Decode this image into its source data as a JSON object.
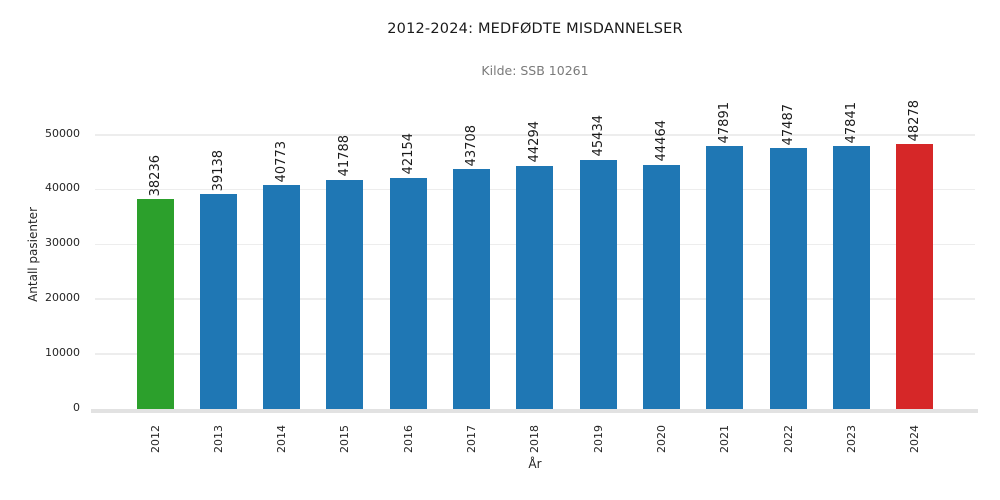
{
  "chart_data": {
    "type": "bar",
    "title": "2012-2024: MEDFØDTE MISDANNELSER",
    "subtitle": "Kilde: SSB 10261",
    "xlabel": "År",
    "ylabel": "Antall pasienter",
    "categories": [
      "2012",
      "2013",
      "2014",
      "2015",
      "2016",
      "2017",
      "2018",
      "2019",
      "2020",
      "2021",
      "2022",
      "2023",
      "2024"
    ],
    "values": [
      38236,
      39138,
      40773,
      41788,
      42154,
      43708,
      44294,
      45434,
      44464,
      47891,
      47487,
      47841,
      48278
    ],
    "bar_colors": [
      "#2ca02c",
      "#1f77b4",
      "#1f77b4",
      "#1f77b4",
      "#1f77b4",
      "#1f77b4",
      "#1f77b4",
      "#1f77b4",
      "#1f77b4",
      "#1f77b4",
      "#1f77b4",
      "#1f77b4",
      "#d62728"
    ],
    "value_labels_shown": true,
    "yticks": [
      0,
      10000,
      20000,
      30000,
      40000,
      50000
    ],
    "ylim": [
      0,
      50000
    ],
    "grid": true,
    "legend": "none",
    "colors": {
      "first_bar": "#2ca02c",
      "default_bar": "#1f77b4",
      "last_bar": "#d62728",
      "gridline": "#ededed",
      "baseline": "#e2e2e2",
      "title_text": "#1a1a1a",
      "subtitle_text": "#7a7a7a",
      "tick_text": "#262626"
    }
  }
}
